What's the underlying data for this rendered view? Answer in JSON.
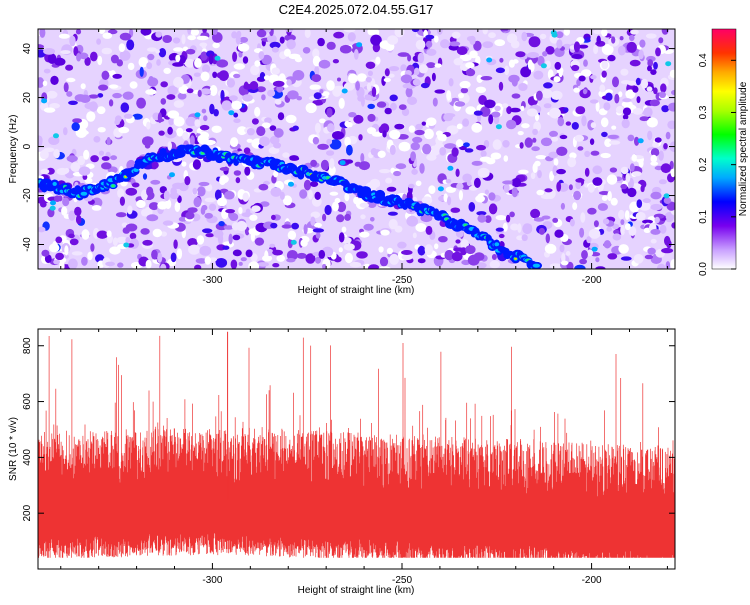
{
  "figure": {
    "title": "C2E4.2025.072.04.55.G17"
  },
  "chart_data": [
    {
      "type": "heatmap",
      "xlabel": "Height of straight line (km)",
      "ylabel": "Frequency (Hz)",
      "xlim": [
        -346,
        -178
      ],
      "ylim": [
        -50,
        48
      ],
      "x_ticks": [
        -300,
        -250,
        -200
      ],
      "x_tick_labels": [
        "-300",
        "-250",
        "-200"
      ],
      "y_ticks": [
        -40,
        -20,
        0,
        20,
        40
      ],
      "y_tick_labels": [
        "-40",
        "-20",
        "0",
        "20",
        "40"
      ],
      "colorbar": {
        "label": "Normalized spectral amplitude",
        "range": [
          0.0,
          0.46
        ],
        "ticks": [
          0.0,
          0.1,
          0.2,
          0.3,
          0.4
        ],
        "tick_labels": [
          "0.0",
          "0.1",
          "0.2",
          "0.3",
          "0.4"
        ]
      },
      "ridge": {
        "x": [
          -346,
          -335,
          -325,
          -318,
          -312,
          -305,
          -298,
          -290,
          -284,
          -278,
          -272,
          -266,
          -260,
          -254,
          -248,
          -242,
          -236,
          -230,
          -224,
          -218,
          -214
        ],
        "y": [
          -15,
          -19,
          -14,
          -6,
          -3,
          -1,
          -4,
          -6,
          -7,
          -10,
          -12,
          -15,
          -19,
          -22,
          -24,
          -27,
          -31,
          -36,
          -42,
          -46,
          -50
        ]
      },
      "grid": false
    },
    {
      "type": "line",
      "xlabel": "Height of straight line (km)",
      "ylabel": "SNR (10 * v/v)",
      "xlim": [
        -346,
        -178
      ],
      "ylim": [
        0,
        860
      ],
      "x_ticks": [
        -300,
        -250,
        -200
      ],
      "x_tick_labels": [
        "-300",
        "-250",
        "-200"
      ],
      "y_ticks": [
        200,
        400,
        600,
        800
      ],
      "y_tick_labels": [
        "200",
        "400",
        "600",
        "800"
      ],
      "series": [
        {
          "color": "#ee3333",
          "envelope_x": [
            -346,
            -330,
            -315,
            -300,
            -285,
            -270,
            -255,
            -240,
            -225,
            -210,
            -195,
            -178
          ],
          "envelope_mean": [
            230,
            240,
            245,
            250,
            245,
            235,
            225,
            215,
            210,
            200,
            190,
            180
          ],
          "typical_range": [
            40,
            520
          ],
          "peak_max": 850
        }
      ],
      "grid": false
    }
  ]
}
